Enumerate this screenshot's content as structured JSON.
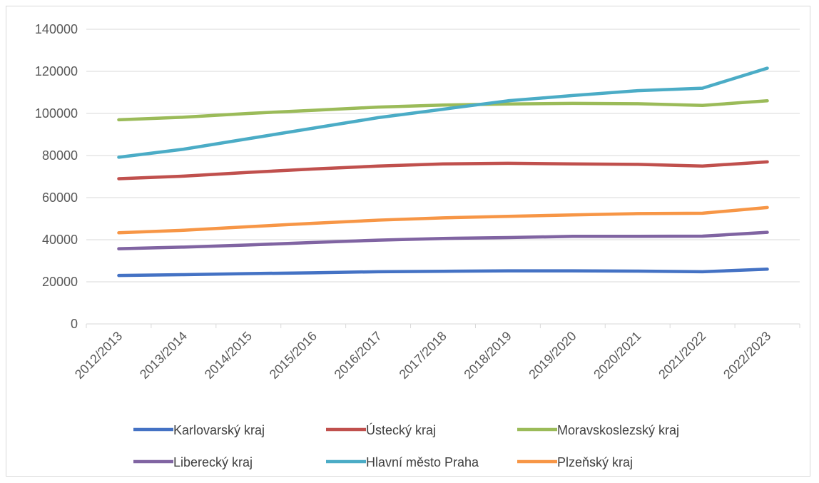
{
  "chart_data": {
    "type": "line",
    "title": "",
    "xlabel": "",
    "ylabel": "",
    "ylim": [
      0,
      140000
    ],
    "yticks": [
      0,
      20000,
      40000,
      60000,
      80000,
      100000,
      120000,
      140000
    ],
    "ytick_labels": [
      "0",
      "20000",
      "40000",
      "60000",
      "80000",
      "100000",
      "120000",
      "140000"
    ],
    "grid": "horizontal",
    "legend_position": "bottom",
    "categories": [
      "2012/2013",
      "2013/2014",
      "2014/2015",
      "2015/2016",
      "2016/2017",
      "2017/2018",
      "2018/2019",
      "2019/2020",
      "2020/2021",
      "2021/2022",
      "2022/2023"
    ],
    "series": [
      {
        "name": "Karlovarský kraj",
        "color": "#4472c4",
        "values": [
          23000,
          23400,
          23900,
          24300,
          24800,
          25000,
          25200,
          25200,
          25100,
          24800,
          26000
        ]
      },
      {
        "name": "Ústecký kraj",
        "color": "#c0504d",
        "values": [
          69000,
          70200,
          72000,
          73600,
          75000,
          76000,
          76300,
          76000,
          75800,
          75000,
          77000
        ]
      },
      {
        "name": "Moravskoslezský kraj",
        "color": "#9bbb59",
        "values": [
          97000,
          98200,
          100000,
          101500,
          103000,
          104000,
          104500,
          104800,
          104600,
          103800,
          106000
        ]
      },
      {
        "name": "Liberecký kraj",
        "color": "#8064a2",
        "values": [
          35700,
          36500,
          37500,
          38700,
          39800,
          40600,
          41000,
          41600,
          41600,
          41700,
          43500
        ]
      },
      {
        "name": "Hlavní město Praha",
        "color": "#4bacc6",
        "values": [
          79200,
          83000,
          88000,
          93000,
          98000,
          102000,
          106000,
          108500,
          110800,
          112000,
          121500
        ]
      },
      {
        "name": "Plzeňský kraj",
        "color": "#f79646",
        "values": [
          43300,
          44500,
          46200,
          47800,
          49300,
          50400,
          51100,
          51800,
          52400,
          52600,
          55300
        ]
      }
    ]
  }
}
